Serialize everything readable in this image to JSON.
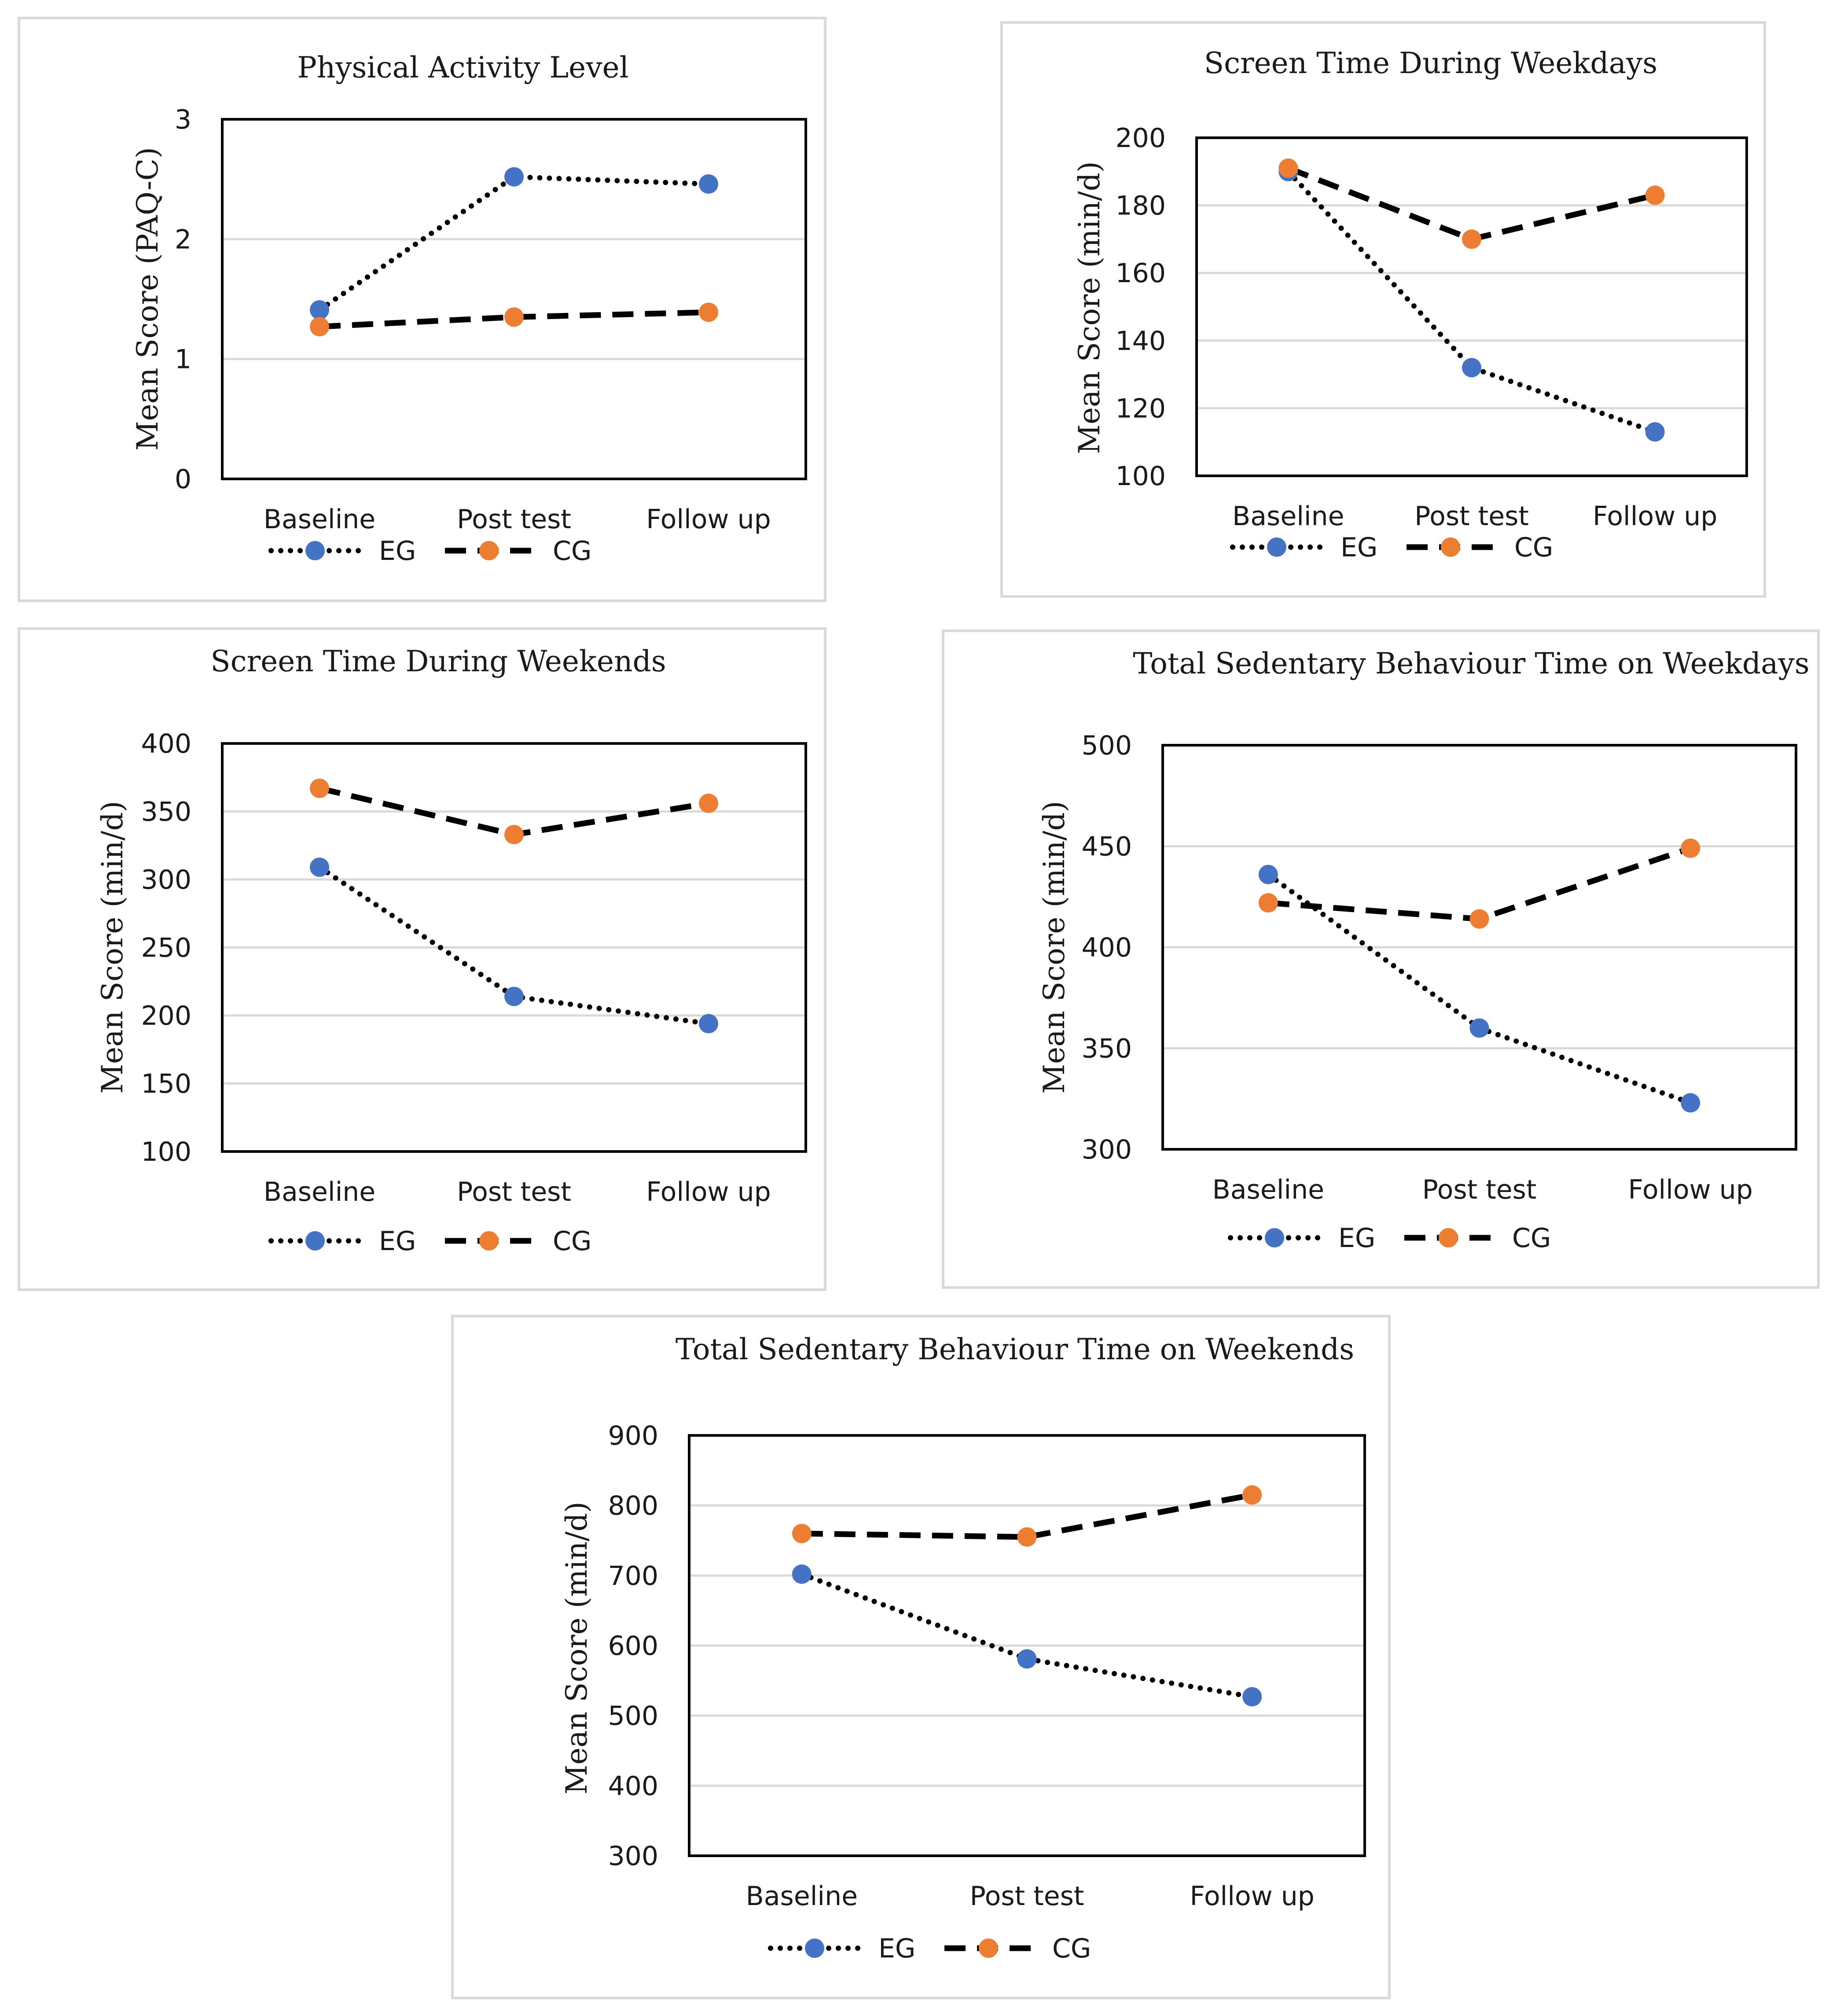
{
  "colors": {
    "eg": "#4472c4",
    "cg": "#ed7d31",
    "line": "#000000",
    "grid": "#d9d9d9"
  },
  "legend": {
    "eg_label": "EG",
    "cg_label": "CG"
  },
  "chart_data": [
    {
      "type": "line",
      "title": "Physical Activity Level",
      "xlabel": "",
      "ylabel": "Mean Score (PAQ-C)",
      "categories": [
        "Baseline",
        "Post test",
        "Follow up"
      ],
      "ylim": [
        0,
        3
      ],
      "yticks": [
        0,
        1,
        2,
        3
      ],
      "series": [
        {
          "name": "EG",
          "values": [
            1.41,
            2.52,
            2.46
          ]
        },
        {
          "name": "CG",
          "values": [
            1.27,
            1.35,
            1.39
          ]
        }
      ]
    },
    {
      "type": "line",
      "title": "Screen Time During Weekdays",
      "xlabel": "",
      "ylabel": "Mean Score (min/d)",
      "categories": [
        "Baseline",
        "Post test",
        "Follow up"
      ],
      "ylim": [
        100,
        200
      ],
      "yticks": [
        100,
        120,
        140,
        160,
        180,
        200
      ],
      "series": [
        {
          "name": "EG",
          "values": [
            190,
            132,
            113
          ]
        },
        {
          "name": "CG",
          "values": [
            191,
            170,
            183
          ]
        }
      ]
    },
    {
      "type": "line",
      "title": "Screen Time During Weekends",
      "xlabel": "",
      "ylabel": "Mean Score (min/d)",
      "categories": [
        "Baseline",
        "Post test",
        "Follow up"
      ],
      "ylim": [
        100,
        400
      ],
      "yticks": [
        100,
        150,
        200,
        250,
        300,
        350,
        400
      ],
      "series": [
        {
          "name": "EG",
          "values": [
            309,
            214,
            194
          ]
        },
        {
          "name": "CG",
          "values": [
            367,
            333,
            356
          ]
        }
      ]
    },
    {
      "type": "line",
      "title": "Total Sedentary Behaviour Time on Weekdays",
      "xlabel": "",
      "ylabel": "Mean Score (min/d)",
      "categories": [
        "Baseline",
        "Post test",
        "Follow up"
      ],
      "ylim": [
        300,
        500
      ],
      "yticks": [
        300,
        350,
        400,
        450,
        500
      ],
      "series": [
        {
          "name": "EG",
          "values": [
            436,
            360,
            323
          ]
        },
        {
          "name": "CG",
          "values": [
            422,
            414,
            449
          ]
        }
      ]
    },
    {
      "type": "line",
      "title": "Total Sedentary Behaviour Time on Weekends",
      "xlabel": "",
      "ylabel": "Mean Score (min/d)",
      "categories": [
        "Baseline",
        "Post test",
        "Follow up"
      ],
      "ylim": [
        300,
        900
      ],
      "yticks": [
        300,
        400,
        500,
        600,
        700,
        800,
        900
      ],
      "series": [
        {
          "name": "EG",
          "values": [
            702,
            581,
            527
          ]
        },
        {
          "name": "CG",
          "values": [
            760,
            755,
            815
          ]
        }
      ]
    }
  ]
}
